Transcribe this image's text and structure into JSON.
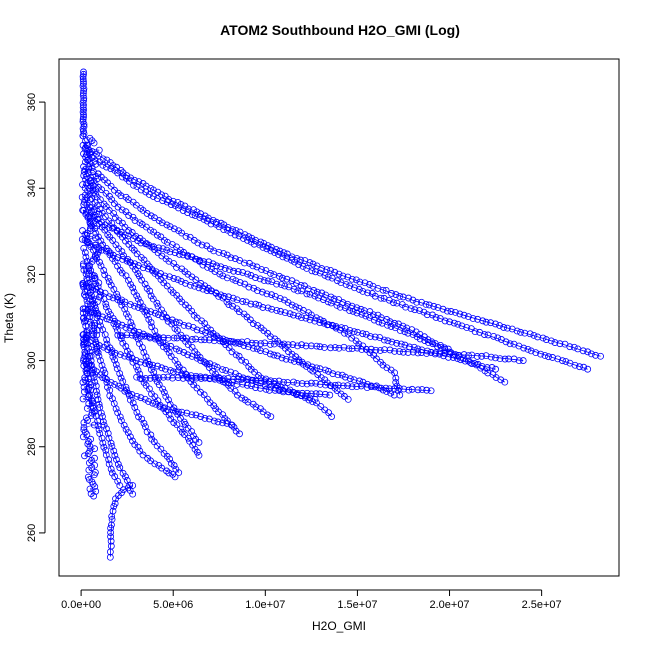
{
  "chart_data": {
    "type": "scatter",
    "title": "ATOM2 Southbound H2O_GMI (Log)",
    "xlabel": "H2O_GMI",
    "ylabel": "Theta (K)",
    "xlim": [
      -1200000,
      29200000
    ],
    "ylim": [
      250,
      370
    ],
    "x_ticks": [
      0,
      5000000,
      10000000,
      15000000,
      20000000,
      25000000
    ],
    "x_tick_labels": [
      "0.0e+00",
      "5.0e+06",
      "1.0e+07",
      "1.5e+07",
      "2.0e+07",
      "2.5e+07"
    ],
    "y_ticks": [
      260,
      280,
      300,
      320,
      340,
      360
    ],
    "y_tick_labels": [
      "260",
      "280",
      "300",
      "320",
      "340",
      "360"
    ],
    "grid": false,
    "marker": "open-circle",
    "line_connected": true,
    "color": "#0000ff",
    "profiles": [
      {
        "x": [
          100000,
          400000,
          1200000,
          2500000,
          5000000,
          8000000,
          11000000,
          14000000,
          18000000,
          22000000,
          26000000,
          28200000
        ],
        "y": [
          352,
          349,
          347,
          343,
          337,
          331,
          325,
          320,
          314,
          309,
          304,
          301
        ]
      },
      {
        "x": [
          100000,
          600000,
          1800000,
          3500000,
          6000000,
          9000000,
          12500000,
          16000000,
          20000000,
          24000000,
          27500000
        ],
        "y": [
          350,
          347,
          344,
          339,
          334,
          328,
          321,
          315,
          309,
          303,
          298
        ]
      },
      {
        "x": [
          100000,
          700000,
          2000000,
          4000000,
          7000000,
          10500000,
          14000000,
          17500000,
          21000000,
          23000000
        ],
        "y": [
          348,
          344,
          339,
          333,
          326,
          320,
          314,
          308,
          300,
          295
        ]
      },
      {
        "x": [
          100000,
          800000,
          2200000,
          4500000,
          7500000,
          11000000,
          14500000,
          17000000,
          17300000
        ],
        "y": [
          345,
          341,
          335,
          328,
          320,
          314,
          306,
          297,
          292
        ]
      },
      {
        "x": [
          100000,
          900000,
          2400000,
          4800000,
          7500000,
          10500000,
          13000000,
          14500000
        ],
        "y": [
          343,
          338,
          331,
          323,
          315,
          305,
          296,
          291
        ]
      },
      {
        "x": [
          100000,
          1000000,
          2600000,
          4500000,
          7000000,
          9800000,
          12800000,
          13600000
        ],
        "y": [
          341,
          335,
          327,
          318,
          307,
          296,
          290,
          287
        ]
      },
      {
        "x": [
          100000,
          1100000,
          2800000,
          4600000,
          6800000,
          8500000,
          10300000
        ],
        "y": [
          338,
          331,
          322,
          310,
          299,
          292,
          287
        ]
      },
      {
        "x": [
          100000,
          1200000,
          2800000,
          4200000,
          5800000,
          7500000,
          8600000
        ],
        "y": [
          335,
          327,
          317,
          305,
          296,
          288,
          283
        ]
      },
      {
        "x": [
          100000,
          1200000,
          2600000,
          3800000,
          5000000,
          6400000
        ],
        "y": [
          330,
          321,
          310,
          298,
          289,
          281
        ]
      },
      {
        "x": [
          100000,
          1000000,
          2200000,
          3400000,
          4600000,
          5800000,
          6400000
        ],
        "y": [
          326,
          316,
          305,
          295,
          288,
          282,
          278
        ]
      },
      {
        "x": [
          100000,
          900000,
          2000000,
          3000000,
          4000000,
          4800000,
          5300000
        ],
        "y": [
          322,
          310,
          298,
          288,
          281,
          277,
          274
        ]
      },
      {
        "x": [
          100000,
          800000,
          1600000,
          2400000,
          3200000,
          4000000,
          4800000,
          5100000
        ],
        "y": [
          318,
          304,
          292,
          284,
          279,
          276,
          274,
          273
        ]
      },
      {
        "x": [
          100000,
          600000,
          1200000,
          1900000,
          2500000,
          2800000
        ],
        "y": [
          312,
          298,
          286,
          277,
          272,
          269
        ]
      },
      {
        "x": [
          100000,
          500000,
          1100000,
          1600000,
          2100000
        ],
        "y": [
          306,
          292,
          282,
          275,
          271
        ]
      },
      {
        "x": [
          1600000,
          1600000,
          1700000,
          1900000,
          2300000,
          2800000
        ],
        "y": [
          254.5,
          258,
          265,
          268,
          270,
          271
        ]
      },
      {
        "x": [
          100000,
          1500000,
          3500000,
          6000000,
          9000000,
          12000000,
          15000000,
          18000000,
          20000000
        ],
        "y": [
          335,
          331,
          327,
          324,
          320,
          316,
          311,
          306,
          302
        ]
      },
      {
        "x": [
          100000,
          2000000,
          5000000,
          8500000,
          12000000,
          15500000,
          19000000,
          22500000
        ],
        "y": [
          328,
          324,
          319,
          314,
          310,
          306,
          302,
          298
        ]
      },
      {
        "x": [
          100000,
          1500000,
          4000000,
          7000000,
          10000000,
          13000000,
          16000000,
          17000000
        ],
        "y": [
          318,
          315,
          311,
          306,
          302,
          298,
          294,
          292
        ]
      },
      {
        "x": [
          100000,
          1800000,
          4000000,
          6500000,
          8800000,
          11000000,
          12700000
        ],
        "y": [
          312,
          309,
          305,
          300,
          296,
          293,
          291
        ]
      },
      {
        "x": [
          100000,
          1200000,
          3000000,
          5500000,
          8000000,
          10500000,
          13500000
        ],
        "y": [
          306,
          303,
          300,
          297,
          295,
          293,
          292
        ]
      },
      {
        "x": [
          100000,
          1200000,
          2800000,
          4500000,
          6500000,
          8200000
        ],
        "y": [
          300,
          296,
          292,
          289,
          287,
          285
        ]
      },
      {
        "x": [
          2000000,
          6000000,
          10000000,
          14000000,
          18000000,
          22000000,
          24000000
        ],
        "y": [
          306,
          305,
          304,
          303,
          302,
          301,
          300
        ]
      },
      {
        "x": [
          3000000,
          7000000,
          11000000,
          15000000,
          19000000
        ],
        "y": [
          296,
          296,
          295,
          294,
          293
        ]
      }
    ],
    "vertical_cluster": {
      "x_center": 100000,
      "y_range": [
        268,
        367
      ]
    }
  }
}
